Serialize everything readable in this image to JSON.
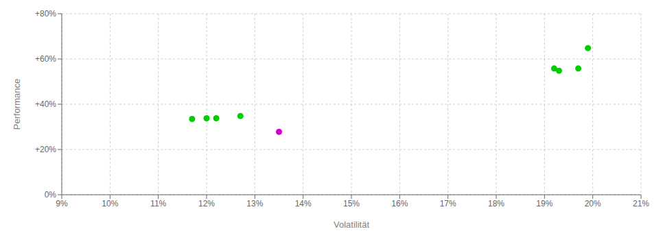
{
  "chart_data": {
    "type": "scatter",
    "xlabel": "Volatilität",
    "ylabel": "Performance",
    "xlim": [
      0.09,
      0.21
    ],
    "ylim": [
      0.0,
      0.8
    ],
    "xticks": [
      {
        "value": 0.09,
        "label": "9%"
      },
      {
        "value": 0.1,
        "label": "10%"
      },
      {
        "value": 0.11,
        "label": "11%"
      },
      {
        "value": 0.12,
        "label": "12%"
      },
      {
        "value": 0.13,
        "label": "13%"
      },
      {
        "value": 0.14,
        "label": "14%"
      },
      {
        "value": 0.15,
        "label": "15%"
      },
      {
        "value": 0.16,
        "label": "16%"
      },
      {
        "value": 0.17,
        "label": "17%"
      },
      {
        "value": 0.18,
        "label": "18%"
      },
      {
        "value": 0.19,
        "label": "19%"
      },
      {
        "value": 0.2,
        "label": "20%"
      },
      {
        "value": 0.21,
        "label": "21%"
      }
    ],
    "yticks": [
      {
        "value": 0.0,
        "label": "0%"
      },
      {
        "value": 0.2,
        "label": "+20%"
      },
      {
        "value": 0.4,
        "label": "+40%"
      },
      {
        "value": 0.6,
        "label": "+60%"
      },
      {
        "value": 0.8,
        "label": "+80%"
      }
    ],
    "grid": true,
    "series": [
      {
        "color": "#00cc00",
        "x": [
          0.117,
          0.12,
          0.122,
          0.127,
          0.192,
          0.193,
          0.197,
          0.199
        ],
        "values": [
          0.335,
          0.338,
          0.338,
          0.348,
          0.558,
          0.548,
          0.558,
          0.648
        ]
      },
      {
        "color": "#cc00cc",
        "x": [
          0.135
        ],
        "values": [
          0.278
        ]
      }
    ]
  }
}
